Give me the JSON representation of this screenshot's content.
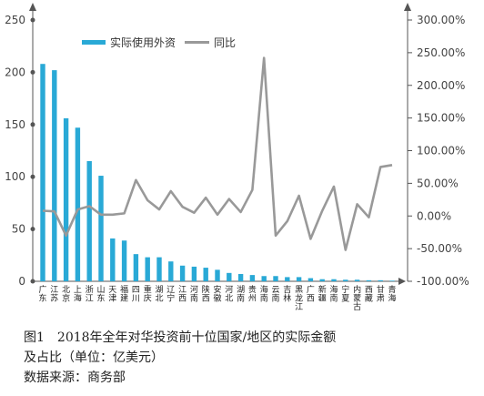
{
  "chart_data": {
    "type": "bar+line",
    "categories": [
      "广东",
      "江苏",
      "北京",
      "上海",
      "浙江",
      "山东",
      "天津",
      "福建",
      "四川",
      "重庆",
      "湖北",
      "辽宁",
      "江西",
      "河南",
      "陕西",
      "安徽",
      "河北",
      "湖南",
      "贵州",
      "海南",
      "云南",
      "吉林",
      "黑龙江",
      "广西",
      "新疆",
      "海南",
      "宁夏",
      "内蒙古",
      "西藏",
      "甘肃",
      "青海"
    ],
    "series": [
      {
        "name": "实际使用外资",
        "type": "bar",
        "axis": "left",
        "color": "#29a9d6",
        "values": [
          208,
          202,
          156,
          147,
          115,
          101,
          41,
          39,
          26,
          23,
          23,
          19,
          15,
          14,
          13,
          11,
          8,
          7,
          6,
          5,
          5,
          4,
          4,
          3,
          2,
          2,
          1.5,
          1.5,
          1,
          1,
          0.6
        ]
      },
      {
        "name": "同比",
        "type": "line",
        "axis": "right",
        "color": "#999999",
        "values": [
          0.08,
          0.07,
          -0.3,
          0.1,
          0.15,
          0.02,
          0.02,
          0.04,
          0.55,
          0.24,
          0.1,
          0.38,
          0.14,
          0.05,
          0.28,
          0.02,
          0.26,
          0.06,
          0.4,
          2.42,
          -0.3,
          -0.08,
          0.31,
          -0.35,
          0.08,
          0.45,
          -0.52,
          0.18,
          -0.02,
          0.75,
          0.78
        ]
      }
    ],
    "y_left": {
      "min": 0,
      "max": 250,
      "ticks": [
        0,
        50,
        100,
        150,
        200,
        250
      ]
    },
    "y_right": {
      "min": -1.0,
      "max": 3.0,
      "ticks": [
        "-100.00%",
        "-50.00%",
        "0.00%",
        "50.00%",
        "100.00%",
        "150.00%",
        "200.00%",
        "250.00%",
        "300.00%"
      ]
    },
    "legend": {
      "position": "top-left"
    }
  },
  "caption": {
    "line1": "图1　2018年全年对华投资前十位国家/地区的实际金额",
    "line2": "及占比（单位：亿美元）",
    "source": "数据来源：商务部"
  }
}
